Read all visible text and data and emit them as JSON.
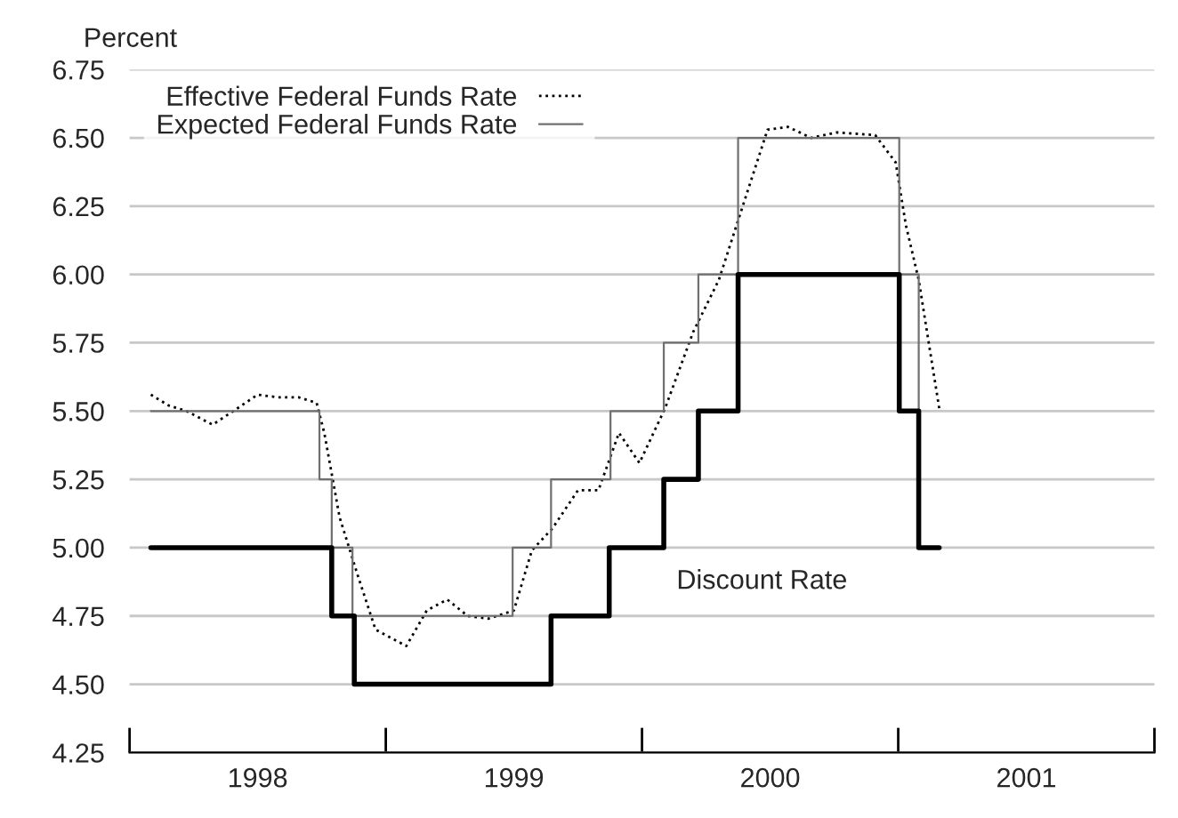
{
  "chart_data": {
    "type": "line",
    "ylabel": "Percent",
    "xlim": [
      1998,
      2002
    ],
    "xticks": [
      {
        "value": 1998,
        "label": null
      },
      {
        "value": 1999,
        "label": null
      },
      {
        "value": 2000,
        "label": null
      },
      {
        "value": 2001,
        "label": null
      },
      {
        "value": 2002,
        "label": null
      },
      {
        "value": 1998.5,
        "label": "1998"
      },
      {
        "value": 1999.5,
        "label": "1999"
      },
      {
        "value": 2000.5,
        "label": "2000"
      },
      {
        "value": 2001.5,
        "label": "2001"
      }
    ],
    "ylim": [
      4.25,
      6.75
    ],
    "yticks": [
      {
        "value": 4.25,
        "label": "4.25"
      },
      {
        "value": 4.5,
        "label": "4.50"
      },
      {
        "value": 4.75,
        "label": "4.75"
      },
      {
        "value": 5.0,
        "label": "5.00"
      },
      {
        "value": 5.25,
        "label": "5.25"
      },
      {
        "value": 5.5,
        "label": "5.50"
      },
      {
        "value": 5.75,
        "label": "5.75"
      },
      {
        "value": 6.0,
        "label": "6.00"
      },
      {
        "value": 6.25,
        "label": "6.25"
      },
      {
        "value": 6.5,
        "label": "6.50"
      },
      {
        "value": 6.75,
        "label": "6.75"
      }
    ],
    "grid": "y",
    "legend": "top left",
    "series": [
      {
        "name": "Effective Federal Funds Rate",
        "line_style": "dotted",
        "color": "#000000",
        "x": [
          1998.083,
          1998.153,
          1998.222,
          1998.324,
          1998.405,
          1998.5,
          1998.58,
          1998.66,
          1998.73,
          1998.76,
          1998.82,
          1998.89,
          1998.96,
          1999.08,
          1999.16,
          1999.24,
          1999.32,
          1999.4,
          1999.5,
          1999.57,
          1999.65,
          1999.75,
          1999.83,
          1999.91,
          1999.99,
          2000.09,
          2000.2,
          2000.3,
          2000.4,
          2000.49,
          2000.57,
          2000.66,
          2000.76,
          2000.91,
          2000.99,
          2001.03,
          2001.08,
          2001.16
        ],
        "values": [
          5.56,
          5.52,
          5.5,
          5.45,
          5.5,
          5.56,
          5.55,
          5.55,
          5.53,
          5.42,
          5.11,
          4.9,
          4.7,
          4.64,
          4.77,
          4.81,
          4.75,
          4.74,
          4.77,
          4.99,
          5.07,
          5.21,
          5.21,
          5.42,
          5.31,
          5.51,
          5.79,
          5.98,
          6.27,
          6.53,
          6.54,
          6.5,
          6.52,
          6.51,
          6.41,
          6.18,
          5.98,
          5.51
        ]
      },
      {
        "name": "Expected Federal Funds Rate",
        "type": "step",
        "line_style": "solid",
        "color": "#707070",
        "x": [
          1998.083,
          1998.741,
          1998.789,
          1998.87,
          1999.495,
          1999.645,
          1999.877,
          2000.085,
          2000.22,
          2000.375,
          2001.004,
          2001.08,
          2001.08
        ],
        "values": [
          5.5,
          5.25,
          5.0,
          4.75,
          5.0,
          5.25,
          5.5,
          5.75,
          6.0,
          6.5,
          6.0,
          5.5,
          5.5
        ]
      },
      {
        "type": "step",
        "line_style": "solid",
        "color": "#000000",
        "x": [
          1998.083,
          1998.789,
          1998.877,
          1999.645,
          1999.872,
          2000.085,
          2000.22,
          2000.375,
          2001.004,
          2001.08,
          2001.16
        ],
        "values": [
          5.0,
          4.75,
          4.5,
          4.75,
          5.0,
          5.25,
          5.5,
          6.0,
          5.5,
          5.0,
          5.0
        ]
      }
    ],
    "annotations": [
      "Discount Rate"
    ]
  }
}
